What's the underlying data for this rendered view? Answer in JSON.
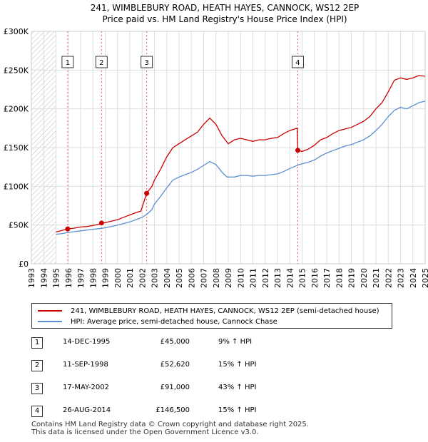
{
  "chart_data": {
    "type": "line",
    "title": "241, WIMBLEBURY ROAD, HEATH HAYES, CANNOCK, WS12 2EP",
    "subtitle": "Price paid vs. HM Land Registry's House Price Index (HPI)",
    "xlim": [
      1993,
      2025
    ],
    "ylim": [
      0,
      300000
    ],
    "x_ticks": [
      "1993",
      "1994",
      "1995",
      "1996",
      "1997",
      "1998",
      "1999",
      "2000",
      "2001",
      "2002",
      "2003",
      "2004",
      "2005",
      "2006",
      "2007",
      "2008",
      "2009",
      "2010",
      "2011",
      "2012",
      "2013",
      "2014",
      "2015",
      "2016",
      "2017",
      "2018",
      "2019",
      "2020",
      "2021",
      "2022",
      "2023",
      "2024",
      "2025"
    ],
    "y_ticks": [
      {
        "value": 0,
        "label": "£0"
      },
      {
        "value": 50000,
        "label": "£50K"
      },
      {
        "value": 100000,
        "label": "£100K"
      },
      {
        "value": 150000,
        "label": "£150K"
      },
      {
        "value": 200000,
        "label": "£200K"
      },
      {
        "value": 250000,
        "label": "£250K"
      },
      {
        "value": 300000,
        "label": "£300K"
      }
    ],
    "data_start": 1995.0,
    "data_end": 2025.0,
    "grid": true,
    "series": [
      {
        "name": "241, WIMBLEBURY ROAD, HEATH HAYES, CANNOCK, WS12 2EP (semi-detached house)",
        "color": "#cc0000",
        "points": [
          [
            1995.0,
            41000
          ],
          [
            1995.5,
            43000
          ],
          [
            1995.95,
            45000
          ],
          [
            1996.5,
            46000
          ],
          [
            1997.0,
            47500
          ],
          [
            1997.5,
            48000
          ],
          [
            1998.0,
            49500
          ],
          [
            1998.5,
            51000
          ],
          [
            1998.7,
            52620
          ],
          [
            1999.0,
            53000
          ],
          [
            1999.5,
            55000
          ],
          [
            2000.0,
            57000
          ],
          [
            2000.5,
            60000
          ],
          [
            2001.0,
            63000
          ],
          [
            2001.5,
            66000
          ],
          [
            2001.9,
            68000
          ],
          [
            2002.37,
            91000
          ],
          [
            2002.8,
            100000
          ],
          [
            2003.0,
            108000
          ],
          [
            2003.5,
            122000
          ],
          [
            2004.0,
            138000
          ],
          [
            2004.5,
            150000
          ],
          [
            2005.0,
            155000
          ],
          [
            2005.5,
            160000
          ],
          [
            2006.0,
            165000
          ],
          [
            2006.5,
            170000
          ],
          [
            2007.0,
            180000
          ],
          [
            2007.5,
            188000
          ],
          [
            2008.0,
            180000
          ],
          [
            2008.5,
            165000
          ],
          [
            2009.0,
            155000
          ],
          [
            2009.5,
            160000
          ],
          [
            2010.0,
            162000
          ],
          [
            2010.5,
            160000
          ],
          [
            2011.0,
            158000
          ],
          [
            2011.5,
            160000
          ],
          [
            2012.0,
            160000
          ],
          [
            2012.5,
            162000
          ],
          [
            2013.0,
            163000
          ],
          [
            2013.5,
            168000
          ],
          [
            2014.0,
            172000
          ],
          [
            2014.6,
            175000
          ],
          [
            2014.65,
            146500
          ],
          [
            2015.0,
            145000
          ],
          [
            2015.5,
            148000
          ],
          [
            2016.0,
            153000
          ],
          [
            2016.5,
            160000
          ],
          [
            2017.0,
            163000
          ],
          [
            2017.5,
            168000
          ],
          [
            2018.0,
            172000
          ],
          [
            2018.5,
            174000
          ],
          [
            2019.0,
            176000
          ],
          [
            2019.5,
            180000
          ],
          [
            2020.0,
            184000
          ],
          [
            2020.5,
            190000
          ],
          [
            2021.0,
            200000
          ],
          [
            2021.5,
            208000
          ],
          [
            2022.0,
            222000
          ],
          [
            2022.5,
            237000
          ],
          [
            2023.0,
            240000
          ],
          [
            2023.5,
            238000
          ],
          [
            2024.0,
            240000
          ],
          [
            2024.5,
            243000
          ],
          [
            2025.0,
            242000
          ]
        ]
      },
      {
        "name": "HPI: Average price, semi-detached house, Cannock Chase",
        "color": "#5b8fd0",
        "points": [
          [
            1995.0,
            38000
          ],
          [
            1995.5,
            39000
          ],
          [
            1996.0,
            40500
          ],
          [
            1996.5,
            41500
          ],
          [
            1997.0,
            42500
          ],
          [
            1997.5,
            43500
          ],
          [
            1998.0,
            44500
          ],
          [
            1998.7,
            45700
          ],
          [
            1999.0,
            46500
          ],
          [
            1999.5,
            48000
          ],
          [
            2000.0,
            50000
          ],
          [
            2000.5,
            52000
          ],
          [
            2001.0,
            54000
          ],
          [
            2001.5,
            57000
          ],
          [
            2002.0,
            60000
          ],
          [
            2002.37,
            63600
          ],
          [
            2002.8,
            70000
          ],
          [
            2003.0,
            77000
          ],
          [
            2003.5,
            87000
          ],
          [
            2004.0,
            98000
          ],
          [
            2004.5,
            108000
          ],
          [
            2005.0,
            112000
          ],
          [
            2005.5,
            115000
          ],
          [
            2006.0,
            118000
          ],
          [
            2006.5,
            122000
          ],
          [
            2007.0,
            127000
          ],
          [
            2007.5,
            132000
          ],
          [
            2008.0,
            128000
          ],
          [
            2008.5,
            118000
          ],
          [
            2008.9,
            112000
          ],
          [
            2009.5,
            112000
          ],
          [
            2010.0,
            114000
          ],
          [
            2010.5,
            114000
          ],
          [
            2011.0,
            113000
          ],
          [
            2011.5,
            114000
          ],
          [
            2012.0,
            114000
          ],
          [
            2012.5,
            115000
          ],
          [
            2013.0,
            116000
          ],
          [
            2013.5,
            119000
          ],
          [
            2014.0,
            123000
          ],
          [
            2014.65,
            127400
          ],
          [
            2015.0,
            129000
          ],
          [
            2015.5,
            131000
          ],
          [
            2016.0,
            134000
          ],
          [
            2016.5,
            139000
          ],
          [
            2017.0,
            143000
          ],
          [
            2017.5,
            146000
          ],
          [
            2018.0,
            149000
          ],
          [
            2018.5,
            152000
          ],
          [
            2019.0,
            154000
          ],
          [
            2019.5,
            157000
          ],
          [
            2020.0,
            160000
          ],
          [
            2020.5,
            165000
          ],
          [
            2021.0,
            172000
          ],
          [
            2021.5,
            180000
          ],
          [
            2022.0,
            190000
          ],
          [
            2022.5,
            198000
          ],
          [
            2023.0,
            202000
          ],
          [
            2023.5,
            200000
          ],
          [
            2024.0,
            204000
          ],
          [
            2024.5,
            208000
          ],
          [
            2025.0,
            210000
          ]
        ]
      }
    ],
    "sales": [
      {
        "num": "1",
        "date": "14-DEC-1995",
        "x": 1995.95,
        "value": 45000,
        "price": "£45,000",
        "hpi": "9% ↑ HPI"
      },
      {
        "num": "2",
        "date": "11-SEP-1998",
        "x": 1998.7,
        "value": 52620,
        "price": "£52,620",
        "hpi": "15% ↑ HPI"
      },
      {
        "num": "3",
        "date": "17-MAY-2002",
        "x": 2002.37,
        "value": 91000,
        "price": "£91,000",
        "hpi": "43% ↑ HPI"
      },
      {
        "num": "4",
        "date": "26-AUG-2014",
        "x": 2014.65,
        "value": 146500,
        "price": "£146,500",
        "hpi": "15% ↑ HPI"
      }
    ]
  },
  "legend": {
    "series1_label": "241, WIMBLEBURY ROAD, HEATH HAYES, CANNOCK, WS12 2EP (semi-detached house)",
    "series2_label": "HPI: Average price, semi-detached house, Cannock Chase",
    "series1_color": "#cc0000",
    "series2_color": "#5b8fd0"
  },
  "footer": {
    "line1": "Contains HM Land Registry data © Crown copyright and database right 2025.",
    "line2": "This data is licensed under the Open Government Licence v3.0."
  }
}
